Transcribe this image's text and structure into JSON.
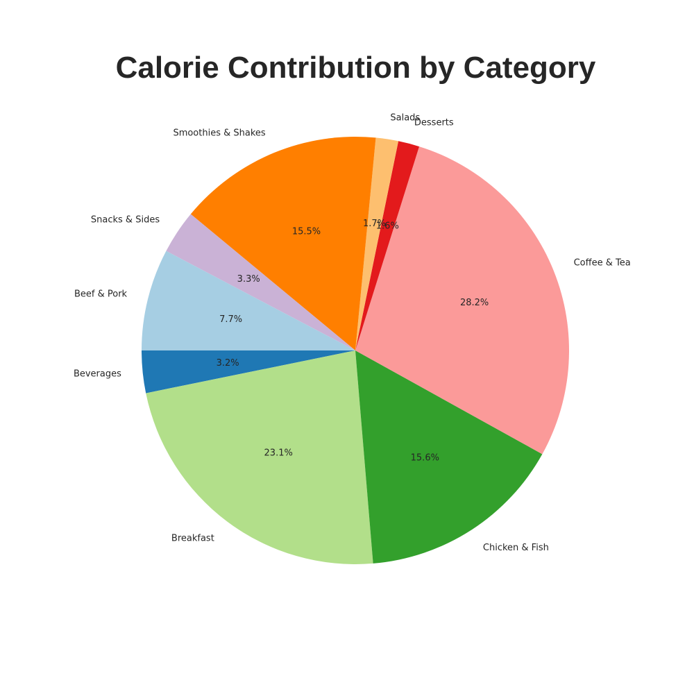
{
  "chart_data": {
    "type": "pie",
    "title": "Calorie Contribution by Category",
    "start_angle_deg": 180,
    "direction": "counterclockwise",
    "slices": [
      {
        "label": "Beverages",
        "value": 3.2,
        "pct_label": "3.2%",
        "color": "#1f78b4"
      },
      {
        "label": "Breakfast",
        "value": 23.1,
        "pct_label": "23.1%",
        "color": "#b2df8a"
      },
      {
        "label": "Chicken & Fish",
        "value": 15.6,
        "pct_label": "15.6%",
        "color": "#33a02c"
      },
      {
        "label": "Coffee & Tea",
        "value": 28.2,
        "pct_label": "28.2%",
        "color": "#fb9a99"
      },
      {
        "label": "Desserts",
        "value": 1.6,
        "pct_label": "1.6%",
        "color": "#e31a1c"
      },
      {
        "label": "Salads",
        "value": 1.7,
        "pct_label": "1.7%",
        "color": "#fdbf6f"
      },
      {
        "label": "Smoothies & Shakes",
        "value": 15.5,
        "pct_label": "15.5%",
        "color": "#ff7f00"
      },
      {
        "label": "Snacks & Sides",
        "value": 3.3,
        "pct_label": "3.3%",
        "color": "#cab2d6"
      },
      {
        "label": "Beef & Pork",
        "value": 7.7,
        "pct_label": "7.7%",
        "color": "#a6cee3"
      }
    ]
  }
}
